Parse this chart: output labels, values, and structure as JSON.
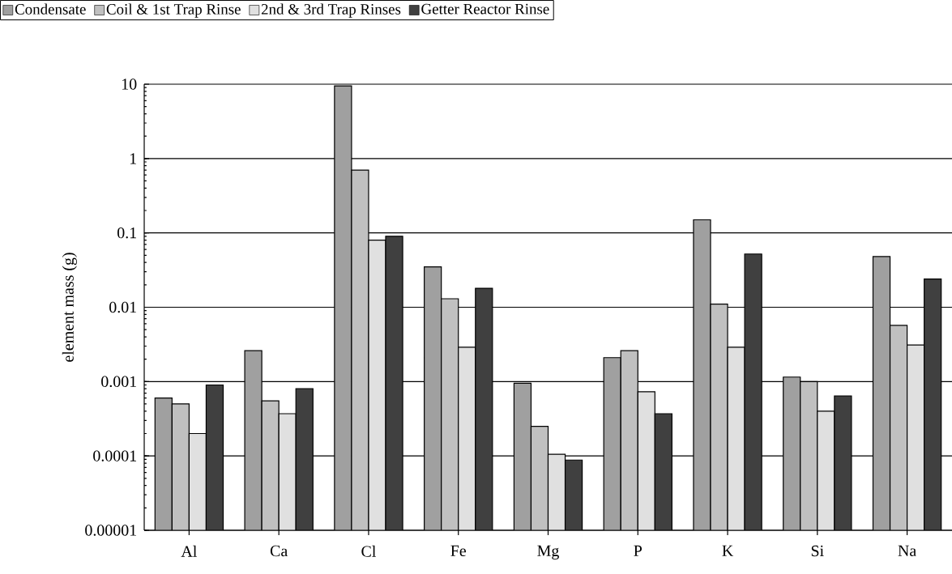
{
  "chart_data": {
    "type": "bar",
    "ylabel": "element mass (g)",
    "log": "y",
    "grid": "y",
    "legend": "top left",
    "categories": [
      "Al",
      "Ca",
      "Cl",
      "Fe",
      "Mg",
      "P",
      "K",
      "Si",
      "Na"
    ],
    "ylim": [
      1e-05,
      10
    ],
    "yticks": [
      {
        "value": 1e-05,
        "label": "0.00001"
      },
      {
        "value": 0.0001,
        "label": "0.0001"
      },
      {
        "value": 0.001,
        "label": "0.001"
      },
      {
        "value": 0.01,
        "label": "0.01"
      },
      {
        "value": 0.1,
        "label": "0.1"
      },
      {
        "value": 1,
        "label": "1"
      },
      {
        "value": 10,
        "label": "10"
      }
    ],
    "series": [
      {
        "name": "Condensate",
        "color": "#a0a0a0",
        "values": [
          0.0006,
          0.0026,
          9.5,
          0.035,
          0.00095,
          0.0021,
          0.15,
          0.00115,
          0.048
        ]
      },
      {
        "name": "Coil & 1st Trap Rinse",
        "color": "#c0c0c0",
        "values": [
          0.0005,
          0.00055,
          0.7,
          0.013,
          0.00025,
          0.0026,
          0.011,
          0.001,
          0.0057
        ]
      },
      {
        "name": "2nd & 3rd Trap Rinses",
        "color": "#e0e0e0",
        "values": [
          0.0002,
          0.00037,
          0.08,
          0.0029,
          0.000105,
          0.00073,
          0.0029,
          0.0004,
          0.0031
        ]
      },
      {
        "name": "Getter Reactor Rinse",
        "color": "#404040",
        "values": [
          0.0009,
          0.0008,
          0.09,
          0.018,
          8.8e-05,
          0.00037,
          0.052,
          0.00064,
          0.024
        ]
      }
    ]
  }
}
